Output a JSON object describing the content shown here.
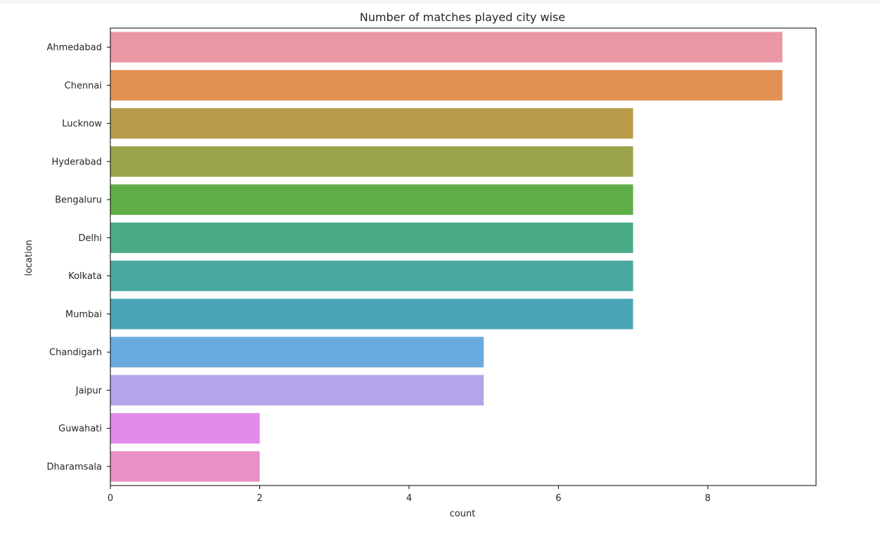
{
  "chart_data": {
    "type": "bar",
    "orientation": "horizontal",
    "title": "Number of matches played city wise",
    "xlabel": "count",
    "ylabel": "location",
    "xlim": [
      0,
      9.45
    ],
    "xticks": [
      0,
      2,
      4,
      6,
      8
    ],
    "grid": false,
    "categories": [
      "Ahmedabad",
      "Chennai",
      "Lucknow",
      "Hyderabad",
      "Bengaluru",
      "Delhi",
      "Kolkata",
      "Mumbai",
      "Chandigarh",
      "Jaipur",
      "Guwahati",
      "Dharamsala"
    ],
    "values": [
      9,
      9,
      7,
      7,
      7,
      7,
      7,
      7,
      5,
      5,
      2,
      2
    ],
    "colors": [
      "#ea96a3",
      "#e19153",
      "#b99b4a",
      "#9aa34a",
      "#5fae47",
      "#4bab86",
      "#4aa99e",
      "#4aa6b6",
      "#6aabdf",
      "#b5a4ea",
      "#e18cea",
      "#e990c6"
    ]
  }
}
